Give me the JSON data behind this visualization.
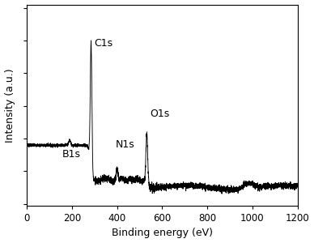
{
  "title": "",
  "xlabel": "Binding energy (eV)",
  "ylabel": "Intensity (a.u.)",
  "xlim": [
    0,
    1200
  ],
  "x_ticks": [
    0,
    200,
    400,
    600,
    800,
    1000,
    1200
  ],
  "peaks": {
    "B1s": {
      "x": 190,
      "label": "B1s"
    },
    "C1s": {
      "x": 285,
      "label": "C1s"
    },
    "N1s": {
      "x": 400,
      "label": "N1s"
    },
    "O1s": {
      "x": 532,
      "label": "O1s"
    }
  },
  "line_color": "#000000",
  "background_color": "#ffffff",
  "font_size_labels": 9,
  "font_size_peaks": 9
}
